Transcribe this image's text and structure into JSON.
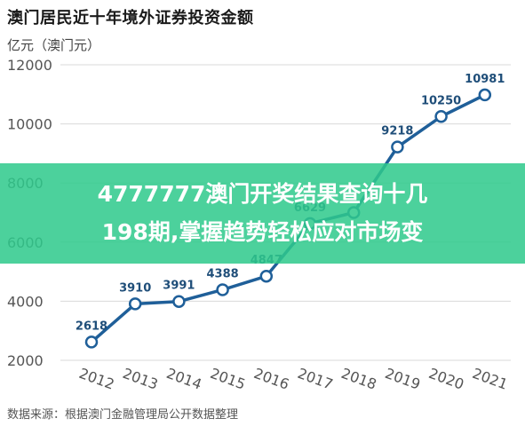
{
  "title": "澳门居民近十年境外证券投资金额",
  "unit_label": "亿元（澳门元）",
  "source": "数据来源：根据澳门金融管理局公开数据整理",
  "banner": {
    "line1": "4777777澳门开奖结果查询十几",
    "line2": "198期,掌握趋势轻松应对市场变"
  },
  "colors": {
    "line": "#1f5f99",
    "point": "#1f5f99",
    "label": "#1f4e79",
    "grid": "#d9d9d9",
    "banner": "#2ec98c"
  },
  "chart_data": {
    "type": "line",
    "title": "澳门居民近十年境外证券投资金额",
    "ylabel": "亿元（澳门元）",
    "xlabel": "",
    "x": [
      "2012",
      "2013",
      "2014",
      "2015",
      "2016",
      "2017",
      "2018",
      "2019",
      "2020",
      "2021"
    ],
    "values": [
      2618,
      3910,
      3991,
      4388,
      4847,
      6629,
      7000,
      9218,
      10250,
      10981
    ],
    "data_labels": [
      "2618",
      "3910",
      "3991",
      "4388",
      "4847",
      "6629",
      "",
      "9218",
      "10250",
      "10981"
    ],
    "y_ticks": [
      2000,
      4000,
      6000,
      8000,
      10000,
      12000
    ],
    "ylim": [
      2000,
      12000
    ],
    "grid": true,
    "legend": "none"
  }
}
